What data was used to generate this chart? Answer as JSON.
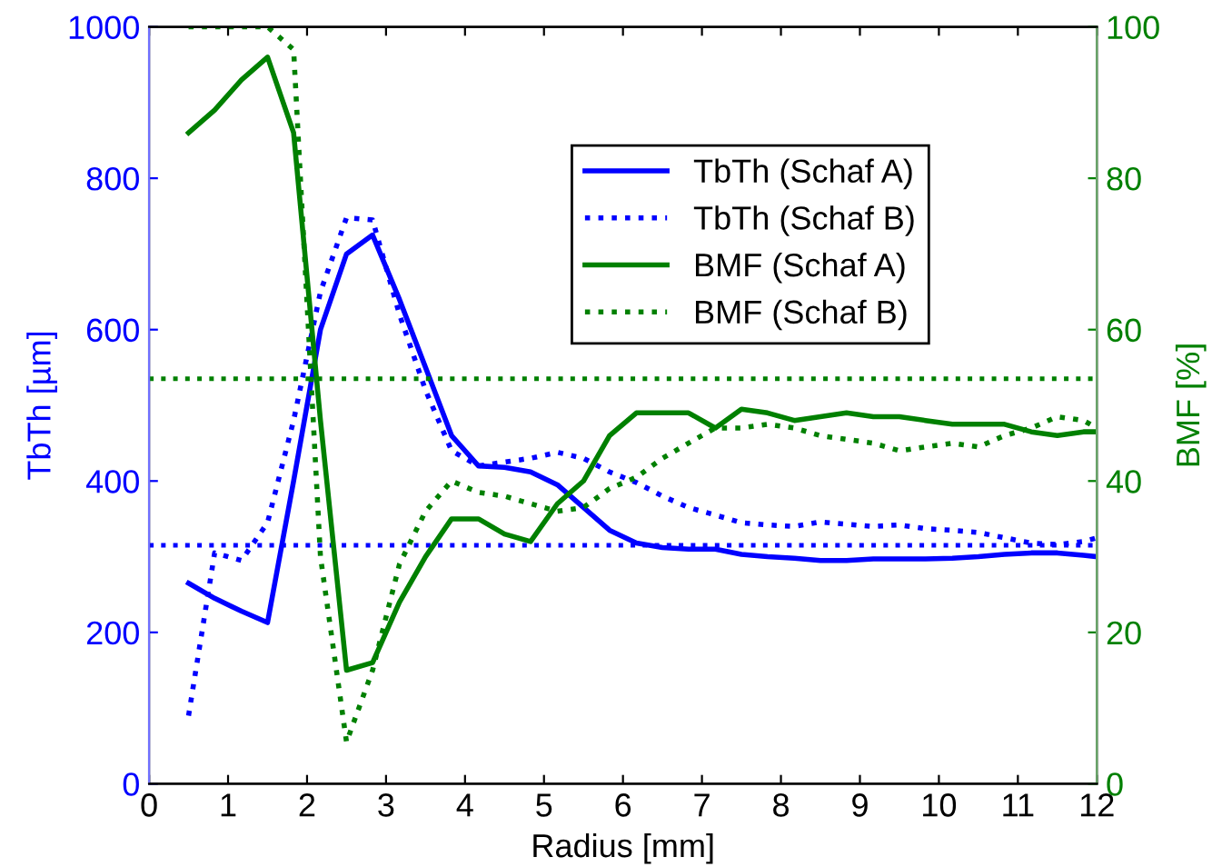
{
  "chart_data": {
    "type": "line",
    "xlabel": "Radius [mm]",
    "ylabel": "TbTh [µm]",
    "y2label": "BMF [%]",
    "x": [
      0.5,
      0.83,
      1.17,
      1.5,
      1.83,
      2.17,
      2.5,
      2.83,
      3.17,
      3.5,
      3.83,
      4.17,
      4.5,
      4.83,
      5.17,
      5.5,
      5.83,
      6.17,
      6.5,
      6.83,
      7.17,
      7.5,
      7.83,
      8.17,
      8.5,
      8.83,
      9.17,
      9.5,
      9.83,
      10.17,
      10.5,
      10.83,
      11.17,
      11.5,
      11.83,
      12
    ],
    "series": [
      {
        "name": "TbTh (Schaf A)",
        "color": "#0000ff",
        "line_style": "solid",
        "values": [
          265,
          245,
          228,
          213,
          400,
          600,
          700,
          725,
          640,
          550,
          460,
          420,
          418,
          412,
          395,
          365,
          335,
          318,
          312,
          310,
          310,
          303,
          300,
          298,
          295,
          295,
          297,
          297,
          297,
          298,
          300,
          303,
          305,
          305,
          302,
          300
        ]
      },
      {
        "name": "TbTh (Schaf B)",
        "color": "#0000ff",
        "line_style": "dotted",
        "values": [
          90,
          305,
          295,
          345,
          480,
          650,
          748,
          745,
          620,
          520,
          440,
          420,
          425,
          430,
          438,
          430,
          412,
          398,
          380,
          365,
          355,
          345,
          342,
          340,
          346,
          343,
          340,
          342,
          337,
          335,
          332,
          325,
          318,
          316,
          320,
          325
        ]
      },
      {
        "name": "BMF (Schaf A)",
        "color": "#008000",
        "line_style": "solid",
        "axis": "y2",
        "values": [
          86,
          89,
          93,
          96,
          86,
          48,
          15,
          16,
          24,
          30,
          35,
          35,
          33,
          32,
          37,
          40,
          46,
          49,
          49,
          49,
          47,
          49.5,
          49,
          48,
          48.5,
          49,
          48.5,
          48.5,
          48,
          47.5,
          47.5,
          47.5,
          46.5,
          46,
          46.5,
          46.5
        ]
      },
      {
        "name": "BMF (Schaf B)",
        "color": "#008000",
        "line_style": "dotted",
        "axis": "y2",
        "values": [
          100,
          100,
          100,
          100,
          97,
          30,
          5.5,
          15,
          29,
          36,
          40,
          38.5,
          38,
          37,
          36,
          36.5,
          39,
          40.5,
          43,
          45,
          47,
          47,
          47.5,
          47,
          46,
          45.5,
          45,
          44,
          44.5,
          45,
          44.5,
          46,
          47,
          48.5,
          48,
          47
        ]
      }
    ],
    "ref_lines": [
      {
        "axis": "y",
        "value": 315,
        "color": "#0000ff",
        "line_style": "dotted"
      },
      {
        "axis": "y2",
        "value": 53.5,
        "color": "#008000",
        "line_style": "dotted"
      }
    ],
    "xlim": [
      0,
      12
    ],
    "xticks": [
      0,
      1,
      2,
      3,
      4,
      5,
      6,
      7,
      8,
      9,
      10,
      11,
      12
    ],
    "ylim": [
      0,
      1000
    ],
    "yticks": [
      0,
      200,
      400,
      600,
      800,
      1000
    ],
    "y2lim": [
      0,
      100
    ],
    "y2ticks": [
      0,
      20,
      40,
      60,
      80,
      100
    ],
    "grid": false,
    "legend": "top right",
    "marker": "none"
  }
}
